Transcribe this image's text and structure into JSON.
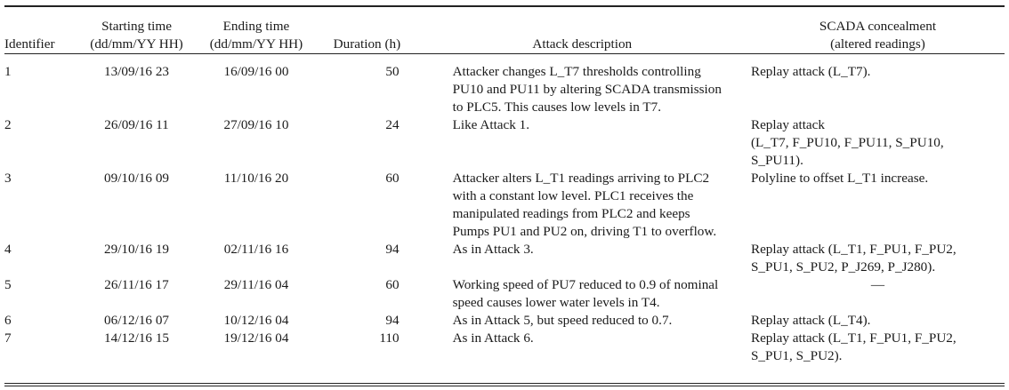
{
  "table": {
    "headers": {
      "identifier": "Identifier",
      "start_line1": "Starting time",
      "start_line2": "(dd/mm/YY HH)",
      "end_line1": "Ending time",
      "end_line2": "(dd/mm/YY HH)",
      "duration": "Duration (h)",
      "description": "Attack description",
      "scada_line1": "SCADA concealment",
      "scada_line2": "(altered readings)"
    },
    "rows": [
      {
        "id": "1",
        "start": "13/09/16 23",
        "end": "16/09/16 00",
        "duration": "50",
        "description": [
          "Attacker changes L_T7 thresholds controlling",
          "PU10 and PU11 by altering SCADA transmission",
          "to PLC5. This causes low levels in T7."
        ],
        "scada": [
          "Replay attack (L_T7)."
        ]
      },
      {
        "id": "2",
        "start": "26/09/16 11",
        "end": "27/09/16 10",
        "duration": "24",
        "description": [
          "Like Attack 1."
        ],
        "scada": [
          "Replay attack",
          "(L_T7, F_PU10, F_PU11, S_PU10,",
          "S_PU11)."
        ]
      },
      {
        "id": "3",
        "start": "09/10/16 09",
        "end": "11/10/16 20",
        "duration": "60",
        "description": [
          "Attacker alters L_T1 readings arriving to PLC2",
          "with a constant low level. PLC1 receives the",
          "manipulated readings from PLC2 and keeps",
          "Pumps PU1 and PU2 on, driving T1 to overflow."
        ],
        "scada": [
          "Polyline to offset L_T1 increase."
        ]
      },
      {
        "id": "4",
        "start": "29/10/16 19",
        "end": "02/11/16 16",
        "duration": "94",
        "description": [
          "As in Attack 3."
        ],
        "scada": [
          "Replay attack (L_T1, F_PU1, F_PU2,",
          "S_PU1, S_PU2, P_J269, P_J280)."
        ]
      },
      {
        "id": "5",
        "start": "26/11/16 17",
        "end": "29/11/16 04",
        "duration": "60",
        "description": [
          "Working speed of PU7 reduced to 0.9 of nominal",
          "speed causes lower water levels in T4."
        ],
        "scada": [
          "—"
        ]
      },
      {
        "id": "6",
        "start": "06/12/16 07",
        "end": "10/12/16 04",
        "duration": "94",
        "description": [
          "As in Attack 5, but speed reduced to 0.7."
        ],
        "scada": [
          "Replay attack (L_T4)."
        ]
      },
      {
        "id": "7",
        "start": "14/12/16 15",
        "end": "19/12/16 04",
        "duration": "110",
        "description": [
          "As in Attack 6."
        ],
        "scada": [
          "Replay attack (L_T1, F_PU1, F_PU2,",
          "S_PU1, S_PU2)."
        ]
      }
    ]
  }
}
